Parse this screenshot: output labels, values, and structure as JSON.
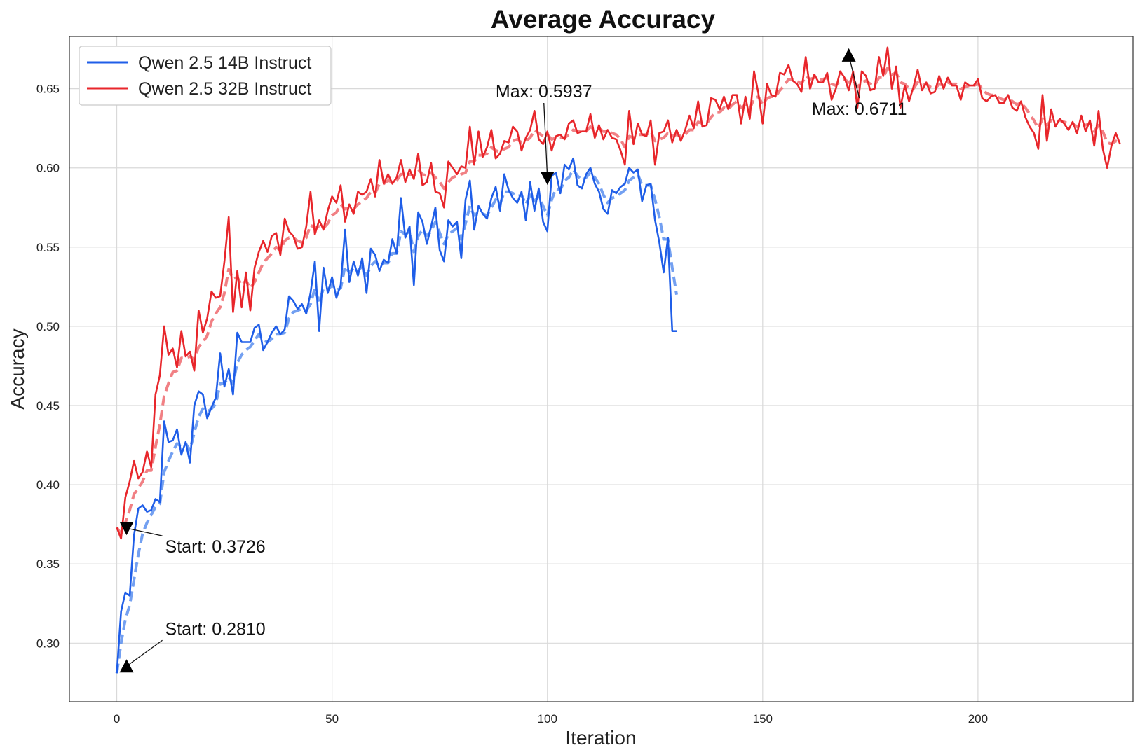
{
  "chart_data": {
    "type": "line",
    "title": "Average Accuracy",
    "xlabel": "Iteration",
    "ylabel": "Accuracy",
    "xlim": [
      -11,
      236
    ],
    "ylim": [
      0.263,
      0.683
    ],
    "xticks": [
      0,
      50,
      100,
      150,
      200
    ],
    "xtick_labels": [
      "0",
      "50",
      "100",
      "150",
      "200"
    ],
    "yticks": [
      0.3,
      0.35,
      0.4,
      0.45,
      0.5,
      0.55,
      0.6,
      0.65
    ],
    "ytick_labels": [
      "0.30",
      "0.35",
      "0.40",
      "0.45",
      "0.50",
      "0.55",
      "0.60",
      "0.65"
    ],
    "grid": true,
    "legend_position": "top-left",
    "series": [
      {
        "name": "Qwen 2.5 14B Instruct",
        "color": "#1f5ee8",
        "smooth_color": "#5a8fef",
        "x_start": 0,
        "values": [
          0.281,
          0.32,
          0.332,
          0.33,
          0.368,
          0.385,
          0.387,
          0.383,
          0.384,
          0.391,
          0.389,
          0.44,
          0.427,
          0.428,
          0.435,
          0.419,
          0.427,
          0.414,
          0.45,
          0.459,
          0.457,
          0.442,
          0.449,
          0.455,
          0.483,
          0.462,
          0.473,
          0.457,
          0.496,
          0.49,
          0.49,
          0.49,
          0.499,
          0.501,
          0.485,
          0.49,
          0.496,
          0.5,
          0.495,
          0.498,
          0.519,
          0.516,
          0.511,
          0.514,
          0.508,
          0.521,
          0.541,
          0.497,
          0.537,
          0.521,
          0.531,
          0.518,
          0.526,
          0.561,
          0.528,
          0.541,
          0.532,
          0.543,
          0.521,
          0.549,
          0.545,
          0.535,
          0.542,
          0.54,
          0.555,
          0.546,
          0.581,
          0.556,
          0.563,
          0.526,
          0.572,
          0.566,
          0.552,
          0.563,
          0.575,
          0.548,
          0.541,
          0.567,
          0.563,
          0.566,
          0.543,
          0.58,
          0.592,
          0.561,
          0.576,
          0.571,
          0.568,
          0.581,
          0.588,
          0.573,
          0.596,
          0.586,
          0.581,
          0.578,
          0.585,
          0.567,
          0.591,
          0.573,
          0.587,
          0.566,
          0.56,
          0.595,
          0.597,
          0.584,
          0.602,
          0.599,
          0.606,
          0.589,
          0.587,
          0.596,
          0.6,
          0.59,
          0.585,
          0.574,
          0.571,
          0.586,
          0.584,
          0.588,
          0.59,
          0.6,
          0.597,
          0.599,
          0.579,
          0.589,
          0.59,
          0.567,
          0.553,
          0.534,
          0.556,
          0.497,
          0.497
        ],
        "smoothed": [
          0.281,
          0.3,
          0.315,
          0.324,
          0.34,
          0.356,
          0.369,
          0.376,
          0.381,
          0.386,
          0.388,
          0.408,
          0.415,
          0.421,
          0.426,
          0.424,
          0.426,
          0.422,
          0.433,
          0.443,
          0.448,
          0.446,
          0.448,
          0.451,
          0.464,
          0.464,
          0.468,
          0.464,
          0.477,
          0.482,
          0.485,
          0.487,
          0.491,
          0.495,
          0.491,
          0.49,
          0.492,
          0.495,
          0.495,
          0.496,
          0.505,
          0.509,
          0.51,
          0.511,
          0.51,
          0.514,
          0.524,
          0.515,
          0.524,
          0.523,
          0.526,
          0.523,
          0.524,
          0.538,
          0.534,
          0.537,
          0.535,
          0.538,
          0.532,
          0.538,
          0.541,
          0.538,
          0.54,
          0.54,
          0.546,
          0.546,
          0.56,
          0.558,
          0.56,
          0.547,
          0.557,
          0.561,
          0.557,
          0.56,
          0.566,
          0.559,
          0.552,
          0.558,
          0.56,
          0.562,
          0.555,
          0.565,
          0.576,
          0.57,
          0.572,
          0.571,
          0.57,
          0.575,
          0.58,
          0.577,
          0.585,
          0.585,
          0.584,
          0.582,
          0.583,
          0.577,
          0.583,
          0.579,
          0.582,
          0.576,
          0.57,
          0.58,
          0.587,
          0.586,
          0.592,
          0.594,
          0.599,
          0.595,
          0.592,
          0.594,
          0.597,
          0.594,
          0.59,
          0.583,
          0.578,
          0.581,
          0.582,
          0.584,
          0.586,
          0.592,
          0.594,
          0.596,
          0.589,
          0.589,
          0.589,
          0.58,
          0.569,
          0.555,
          0.555,
          0.537,
          0.52
        ]
      },
      {
        "name": "Qwen 2.5 32B Instruct",
        "color": "#e8262b",
        "smooth_color": "#ee6a6e",
        "x_start": 0,
        "values": [
          0.373,
          0.366,
          0.392,
          0.402,
          0.415,
          0.404,
          0.408,
          0.421,
          0.411,
          0.457,
          0.469,
          0.5,
          0.482,
          0.486,
          0.474,
          0.497,
          0.481,
          0.484,
          0.472,
          0.51,
          0.496,
          0.505,
          0.522,
          0.518,
          0.519,
          0.541,
          0.569,
          0.509,
          0.535,
          0.512,
          0.534,
          0.51,
          0.537,
          0.547,
          0.554,
          0.547,
          0.557,
          0.559,
          0.545,
          0.568,
          0.56,
          0.557,
          0.549,
          0.55,
          0.563,
          0.585,
          0.558,
          0.567,
          0.561,
          0.573,
          0.582,
          0.578,
          0.589,
          0.566,
          0.577,
          0.571,
          0.585,
          0.583,
          0.585,
          0.593,
          0.582,
          0.605,
          0.59,
          0.596,
          0.59,
          0.594,
          0.605,
          0.591,
          0.599,
          0.593,
          0.609,
          0.589,
          0.591,
          0.603,
          0.585,
          0.584,
          0.575,
          0.604,
          0.6,
          0.596,
          0.601,
          0.6,
          0.626,
          0.602,
          0.623,
          0.607,
          0.613,
          0.624,
          0.606,
          0.609,
          0.617,
          0.616,
          0.626,
          0.623,
          0.611,
          0.619,
          0.624,
          0.636,
          0.618,
          0.615,
          0.623,
          0.611,
          0.62,
          0.621,
          0.618,
          0.628,
          0.63,
          0.622,
          0.623,
          0.623,
          0.634,
          0.619,
          0.627,
          0.618,
          0.624,
          0.619,
          0.618,
          0.611,
          0.602,
          0.636,
          0.615,
          0.628,
          0.621,
          0.62,
          0.63,
          0.602,
          0.622,
          0.623,
          0.63,
          0.616,
          0.624,
          0.617,
          0.624,
          0.633,
          0.625,
          0.642,
          0.626,
          0.627,
          0.644,
          0.643,
          0.637,
          0.645,
          0.637,
          0.646,
          0.646,
          0.628,
          0.645,
          0.631,
          0.661,
          0.647,
          0.628,
          0.653,
          0.646,
          0.645,
          0.66,
          0.659,
          0.665,
          0.655,
          0.653,
          0.648,
          0.67,
          0.65,
          0.659,
          0.654,
          0.654,
          0.66,
          0.643,
          0.65,
          0.661,
          0.657,
          0.649,
          0.661,
          0.638,
          0.661,
          0.658,
          0.649,
          0.65,
          0.67,
          0.658,
          0.676,
          0.65,
          0.664,
          0.638,
          0.652,
          0.642,
          0.651,
          0.662,
          0.649,
          0.654,
          0.647,
          0.648,
          0.658,
          0.65,
          0.657,
          0.652,
          0.652,
          0.643,
          0.654,
          0.652,
          0.652,
          0.656,
          0.644,
          0.642,
          0.645,
          0.646,
          0.641,
          0.641,
          0.646,
          0.638,
          0.636,
          0.642,
          0.632,
          0.626,
          0.622,
          0.612,
          0.646,
          0.617,
          0.637,
          0.626,
          0.631,
          0.628,
          0.624,
          0.629,
          0.622,
          0.633,
          0.623,
          0.63,
          0.614,
          0.636,
          0.612,
          0.6,
          0.614,
          0.622,
          0.615
        ],
        "smoothed": [
          0.373,
          0.369,
          0.376,
          0.384,
          0.394,
          0.398,
          0.402,
          0.409,
          0.409,
          0.424,
          0.438,
          0.456,
          0.464,
          0.471,
          0.472,
          0.48,
          0.48,
          0.481,
          0.479,
          0.487,
          0.49,
          0.494,
          0.503,
          0.508,
          0.512,
          0.521,
          0.536,
          0.53,
          0.531,
          0.526,
          0.529,
          0.524,
          0.528,
          0.534,
          0.54,
          0.543,
          0.546,
          0.55,
          0.548,
          0.554,
          0.556,
          0.556,
          0.554,
          0.553,
          0.556,
          0.564,
          0.562,
          0.563,
          0.562,
          0.565,
          0.57,
          0.572,
          0.577,
          0.574,
          0.575,
          0.574,
          0.577,
          0.579,
          0.581,
          0.585,
          0.584,
          0.59,
          0.59,
          0.592,
          0.591,
          0.592,
          0.596,
          0.595,
          0.596,
          0.595,
          0.599,
          0.596,
          0.595,
          0.597,
          0.594,
          0.591,
          0.587,
          0.591,
          0.594,
          0.595,
          0.596,
          0.597,
          0.604,
          0.604,
          0.608,
          0.608,
          0.609,
          0.613,
          0.611,
          0.61,
          0.612,
          0.613,
          0.617,
          0.618,
          0.616,
          0.617,
          0.619,
          0.624,
          0.622,
          0.62,
          0.621,
          0.618,
          0.619,
          0.619,
          0.619,
          0.621,
          0.624,
          0.623,
          0.623,
          0.623,
          0.626,
          0.624,
          0.625,
          0.623,
          0.623,
          0.622,
          0.621,
          0.618,
          0.613,
          0.62,
          0.619,
          0.621,
          0.621,
          0.621,
          0.623,
          0.617,
          0.618,
          0.619,
          0.622,
          0.62,
          0.621,
          0.62,
          0.621,
          0.624,
          0.624,
          0.629,
          0.628,
          0.628,
          0.632,
          0.635,
          0.635,
          0.638,
          0.637,
          0.64,
          0.642,
          0.638,
          0.64,
          0.637,
          0.644,
          0.645,
          0.64,
          0.644,
          0.645,
          0.645,
          0.649,
          0.652,
          0.656,
          0.656,
          0.655,
          0.653,
          0.658,
          0.656,
          0.657,
          0.656,
          0.656,
          0.657,
          0.653,
          0.652,
          0.655,
          0.656,
          0.654,
          0.656,
          0.651,
          0.654,
          0.655,
          0.653,
          0.652,
          0.657,
          0.657,
          0.663,
          0.659,
          0.66,
          0.654,
          0.653,
          0.65,
          0.65,
          0.654,
          0.652,
          0.653,
          0.651,
          0.65,
          0.653,
          0.652,
          0.654,
          0.653,
          0.653,
          0.65,
          0.651,
          0.652,
          0.652,
          0.653,
          0.65,
          0.647,
          0.646,
          0.646,
          0.644,
          0.643,
          0.644,
          0.642,
          0.64,
          0.641,
          0.638,
          0.634,
          0.63,
          0.625,
          0.631,
          0.627,
          0.63,
          0.629,
          0.63,
          0.629,
          0.628,
          0.628,
          0.626,
          0.628,
          0.627,
          0.628,
          0.623,
          0.627,
          0.623,
          0.616,
          0.615,
          0.617,
          0.616
        ]
      }
    ],
    "annotations": [
      {
        "text": "Start: 0.2810",
        "x": 0,
        "y": 0.281
      },
      {
        "text": "Start: 0.3726",
        "x": 0,
        "y": 0.3726
      },
      {
        "text": "Max: 0.5937",
        "x": 100,
        "y": 0.5937
      },
      {
        "text": "Max: 0.6711",
        "x": 170,
        "y": 0.6711
      }
    ]
  }
}
